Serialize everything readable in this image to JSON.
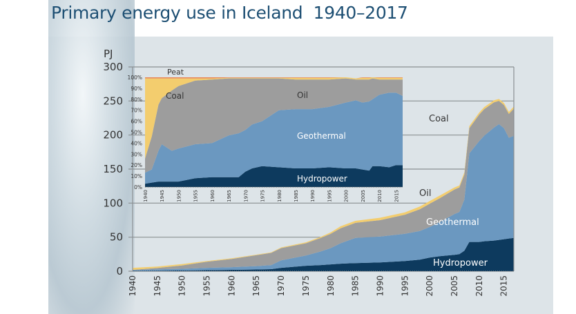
{
  "title": "Primary energy use in Iceland  1940–2017",
  "colors": {
    "hydropower": "#0d3a5e",
    "geothermal": "#6b98c0",
    "oil": "#9d9d9d",
    "coal": "#f3cd6e",
    "peat": "#e8885a",
    "panel": "#dde4e8",
    "title": "#1d4f73"
  },
  "chart_data": [
    {
      "type": "area",
      "title": "Primary energy use in Iceland  1940–2017",
      "ylabel": "PJ",
      "ylim": [
        0,
        300
      ],
      "xlim": [
        1940,
        2017
      ],
      "yticks": [
        "0",
        "50",
        "100",
        "150",
        "200",
        "250",
        "300"
      ],
      "xticks": [
        "1940",
        "1945",
        "1950",
        "1955",
        "1960",
        "1965",
        "1970",
        "1975",
        "1980",
        "1985",
        "1990",
        "1995",
        "2000",
        "2005",
        "2010",
        "2015"
      ],
      "grid": true,
      "stacked": true,
      "x": [
        1940,
        1945,
        1950,
        1955,
        1960,
        1965,
        1968,
        1970,
        1975,
        1978,
        1980,
        1982,
        1985,
        1990,
        1995,
        1998,
        2000,
        2002,
        2005,
        2006,
        2007,
        2008,
        2010,
        2011,
        2013,
        2014,
        2015,
        2016,
        2017
      ],
      "series": [
        {
          "name": "Hydropower",
          "label": "Hydropower",
          "values": [
            0.5,
            0.8,
            1,
            1.5,
            2,
            2.5,
            3,
            5,
            8,
            9,
            10,
            11,
            12,
            13,
            15,
            17,
            20,
            22,
            24,
            25,
            30,
            43,
            43,
            44,
            45,
            46,
            47,
            48,
            49
          ]
        },
        {
          "name": "Geothermal",
          "label": "Geothermal",
          "values": [
            1,
            2,
            2.5,
            3.5,
            4,
            5,
            6,
            11,
            15,
            20,
            24,
            30,
            37,
            38,
            40,
            42,
            45,
            50,
            60,
            62,
            75,
            130,
            148,
            155,
            166,
            170,
            163,
            148,
            150
          ]
        },
        {
          "name": "Oil",
          "label": "Oil",
          "values": [
            0.5,
            2,
            5,
            9,
            12,
            16,
            18,
            18,
            18,
            20,
            21,
            22,
            22,
            24,
            28,
            32,
            34,
            35,
            36,
            36,
            37,
            37,
            39,
            39,
            37,
            34,
            34,
            35,
            40
          ]
        },
        {
          "name": "Coal",
          "label": "Coal",
          "values": [
            3,
            2,
            2,
            1,
            1,
            0.8,
            0.8,
            1,
            1.5,
            1.5,
            2,
            3,
            3,
            3.5,
            3.5,
            4,
            4,
            4,
            3,
            3,
            3,
            3,
            3,
            3,
            3,
            3,
            3,
            3,
            3
          ]
        }
      ]
    },
    {
      "type": "area",
      "title": "",
      "ylabel": "",
      "ylim": [
        0,
        100
      ],
      "xlim": [
        1940,
        2017
      ],
      "yticks": [
        "0%",
        "10%",
        "20%",
        "30%",
        "40%",
        "50%",
        "60%",
        "70%",
        "80%",
        "90%",
        "100%"
      ],
      "xticks": [
        "1940",
        "1945",
        "1950",
        "1955",
        "1960",
        "1965",
        "1970",
        "1975",
        "1980",
        "1985",
        "1990",
        "1995",
        "2000",
        "2005",
        "2010",
        "2015"
      ],
      "stacked": true,
      "x": [
        1940,
        1942,
        1944,
        1945,
        1948,
        1950,
        1955,
        1960,
        1965,
        1968,
        1970,
        1972,
        1975,
        1980,
        1985,
        1990,
        1995,
        2000,
        2003,
        2005,
        2007,
        2008,
        2010,
        2013,
        2015,
        2017
      ],
      "series": [
        {
          "name": "Hydropower",
          "label": "Hydropower",
          "values": [
            3,
            4,
            5,
            5,
            5,
            5,
            8,
            9,
            9,
            9,
            14,
            17,
            19,
            18,
            17,
            17,
            18,
            17,
            17,
            16,
            15,
            19,
            19,
            18,
            20,
            20
          ]
        },
        {
          "name": "Geothermal",
          "label": "Geothermal",
          "values": [
            10,
            12,
            28,
            34,
            28,
            30,
            31,
            31,
            38,
            40,
            38,
            40,
            41,
            52,
            54,
            54,
            55,
            60,
            62,
            61,
            63,
            61,
            65,
            68,
            66,
            63
          ]
        },
        {
          "name": "Oil",
          "label": "Oil",
          "values": [
            13,
            30,
            42,
            42,
            55,
            57,
            58,
            58,
            52,
            50,
            47,
            42,
            39,
            29,
            27,
            27,
            25,
            22,
            19,
            21,
            20,
            19,
            14,
            12,
            12,
            15
          ]
        },
        {
          "name": "Coal",
          "label": "Coal",
          "values": [
            73,
            53,
            24,
            18,
            11,
            7,
            2,
            1,
            0.5,
            0.5,
            0.5,
            0.5,
            0.5,
            0.5,
            1.5,
            1.5,
            1.5,
            1,
            1,
            1.5,
            1.5,
            1,
            1.5,
            1.5,
            1.5,
            1.5
          ]
        },
        {
          "name": "Peat",
          "label": "Peat",
          "values": [
            1,
            1,
            1,
            1,
            1,
            1,
            1,
            1,
            0.5,
            0.5,
            0.5,
            0.5,
            0.5,
            0.5,
            0.5,
            0.5,
            0.5,
            0,
            0,
            0.5,
            0.5,
            0,
            0.5,
            0.5,
            0.5,
            0.5
          ]
        }
      ]
    }
  ]
}
